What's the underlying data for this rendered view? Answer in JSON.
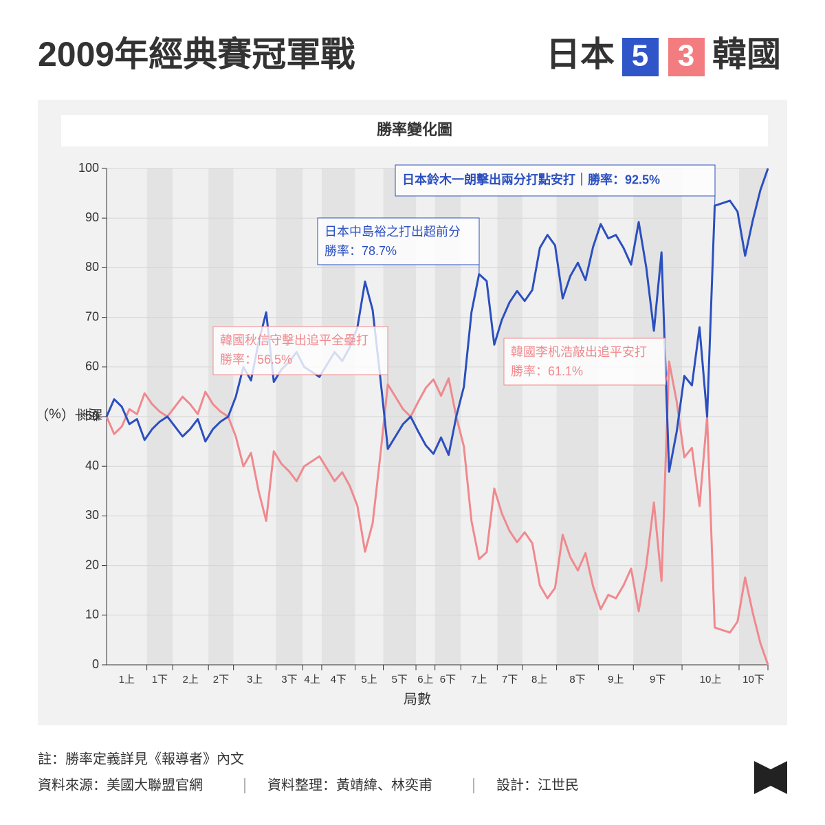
{
  "chart_data": {
    "type": "line",
    "title": "2009年經典賽冠軍戰",
    "subtitle": "勝率變化圖",
    "score": {
      "team1": "日本",
      "score1": 5,
      "team2": "韓國",
      "score2": 3,
      "color1": "#2f55c8",
      "color2": "#f27c80"
    },
    "xlabel": "局數",
    "ylabel": "勝率（%）",
    "ylim": [
      0,
      100
    ],
    "yticks": [
      0,
      10,
      20,
      30,
      40,
      50,
      60,
      70,
      80,
      90,
      100
    ],
    "grid": true,
    "xlim": [
      0,
      87
    ],
    "innings": [
      {
        "label": "1上",
        "start": 0,
        "end": 5.3
      },
      {
        "label": "1下",
        "start": 5.3,
        "end": 8.7
      },
      {
        "label": "2上",
        "start": 8.7,
        "end": 13.4
      },
      {
        "label": "2下",
        "start": 13.4,
        "end": 16.7
      },
      {
        "label": "3上",
        "start": 16.7,
        "end": 22.3
      },
      {
        "label": "3下",
        "start": 22.3,
        "end": 25.8
      },
      {
        "label": "4上",
        "start": 25.8,
        "end": 28.3
      },
      {
        "label": "4下",
        "start": 28.3,
        "end": 32.7
      },
      {
        "label": "5上",
        "start": 32.7,
        "end": 36.4
      },
      {
        "label": "5下",
        "start": 36.4,
        "end": 40.7
      },
      {
        "label": "6上",
        "start": 40.7,
        "end": 43.2
      },
      {
        "label": "6下",
        "start": 43.2,
        "end": 46.6
      },
      {
        "label": "7上",
        "start": 46.6,
        "end": 51.4
      },
      {
        "label": "7下",
        "start": 51.4,
        "end": 54.7
      },
      {
        "label": "8上",
        "start": 54.7,
        "end": 59.2
      },
      {
        "label": "8下",
        "start": 59.2,
        "end": 64.7
      },
      {
        "label": "9上",
        "start": 64.7,
        "end": 69.3
      },
      {
        "label": "9下",
        "start": 69.3,
        "end": 75.7
      },
      {
        "label": "10上",
        "start": 75.7,
        "end": 83.2
      },
      {
        "label": "10下",
        "start": 83.2,
        "end": 87
      }
    ],
    "series": [
      {
        "name": "韓國",
        "color": "#f0898e",
        "values": [
          50,
          46.5,
          48,
          51.5,
          50.5,
          54.7,
          52.5,
          51,
          50,
          52,
          54,
          52.5,
          50.5,
          55,
          52.5,
          51,
          50,
          46,
          40,
          42.7,
          35,
          29,
          43,
          40.5,
          39,
          37,
          40,
          41,
          42,
          39.5,
          37,
          38.8,
          36,
          32,
          22.8,
          28.5,
          42,
          56.5,
          54,
          51.5,
          50,
          53,
          55.8,
          57.5,
          54.2,
          57.7,
          50,
          44,
          29,
          21.3,
          22.7,
          35.5,
          30.5,
          27,
          24.7,
          26.7,
          24.5,
          16,
          13.4,
          15.5,
          26.2,
          21.7,
          19,
          22.5,
          15.8,
          11.2,
          14.1,
          13.4,
          16,
          19.4,
          10.8,
          20,
          32.7,
          16.9,
          61.1,
          53,
          41.8,
          43.7,
          32,
          50,
          7.5,
          7,
          6.5,
          8.7,
          17.6,
          10.5,
          4.4,
          0
        ]
      },
      {
        "name": "日本",
        "color": "#2b4fbf",
        "values": [
          50,
          53.5,
          52,
          48.5,
          49.5,
          45.3,
          47.5,
          49,
          50,
          48,
          46,
          47.5,
          49.5,
          45,
          47.5,
          49,
          50,
          54,
          60,
          57.3,
          65,
          71,
          57,
          59.5,
          61,
          63,
          60,
          59,
          58,
          60.5,
          63,
          61.2,
          64,
          68,
          77.2,
          71.5,
          58,
          43.5,
          46,
          48.5,
          50,
          47,
          44.2,
          42.5,
          45.8,
          42.3,
          50,
          56,
          71,
          78.7,
          77.3,
          64.5,
          69.5,
          73,
          75.3,
          73.3,
          75.5,
          84,
          86.6,
          84.5,
          73.8,
          78.3,
          81,
          77.5,
          84.2,
          88.8,
          85.9,
          86.6,
          84,
          80.6,
          89.2,
          80,
          67.3,
          83.1,
          38.9,
          47,
          58.2,
          56.3,
          68,
          50,
          92.5,
          93,
          93.5,
          91.3,
          82.4,
          89.5,
          95.6,
          100
        ]
      }
    ],
    "annotations": [
      {
        "series": 1,
        "index": 80,
        "lines": [
          "日本鈴木一朗擊出兩分打點安打｜勝率：92.5%"
        ]
      },
      {
        "series": 1,
        "index": 49,
        "lines": [
          "日本中島裕之打出超前分",
          "勝率：78.7%"
        ]
      },
      {
        "series": 0,
        "index": 37,
        "lines": [
          "韓國秋信守擊出追平全壘打",
          "勝率：56.5%"
        ]
      },
      {
        "series": 0,
        "index": 74,
        "lines": [
          "韓國李杋浩敲出追平安打",
          "勝率：61.1%"
        ]
      }
    ]
  },
  "footer": {
    "note": "註：勝率定義詳見《報導者》內文",
    "source": "資料來源：美國大聯盟官網",
    "compiled": "資料整理：黃靖緯、林奕甫",
    "design": "設計：江世民"
  }
}
